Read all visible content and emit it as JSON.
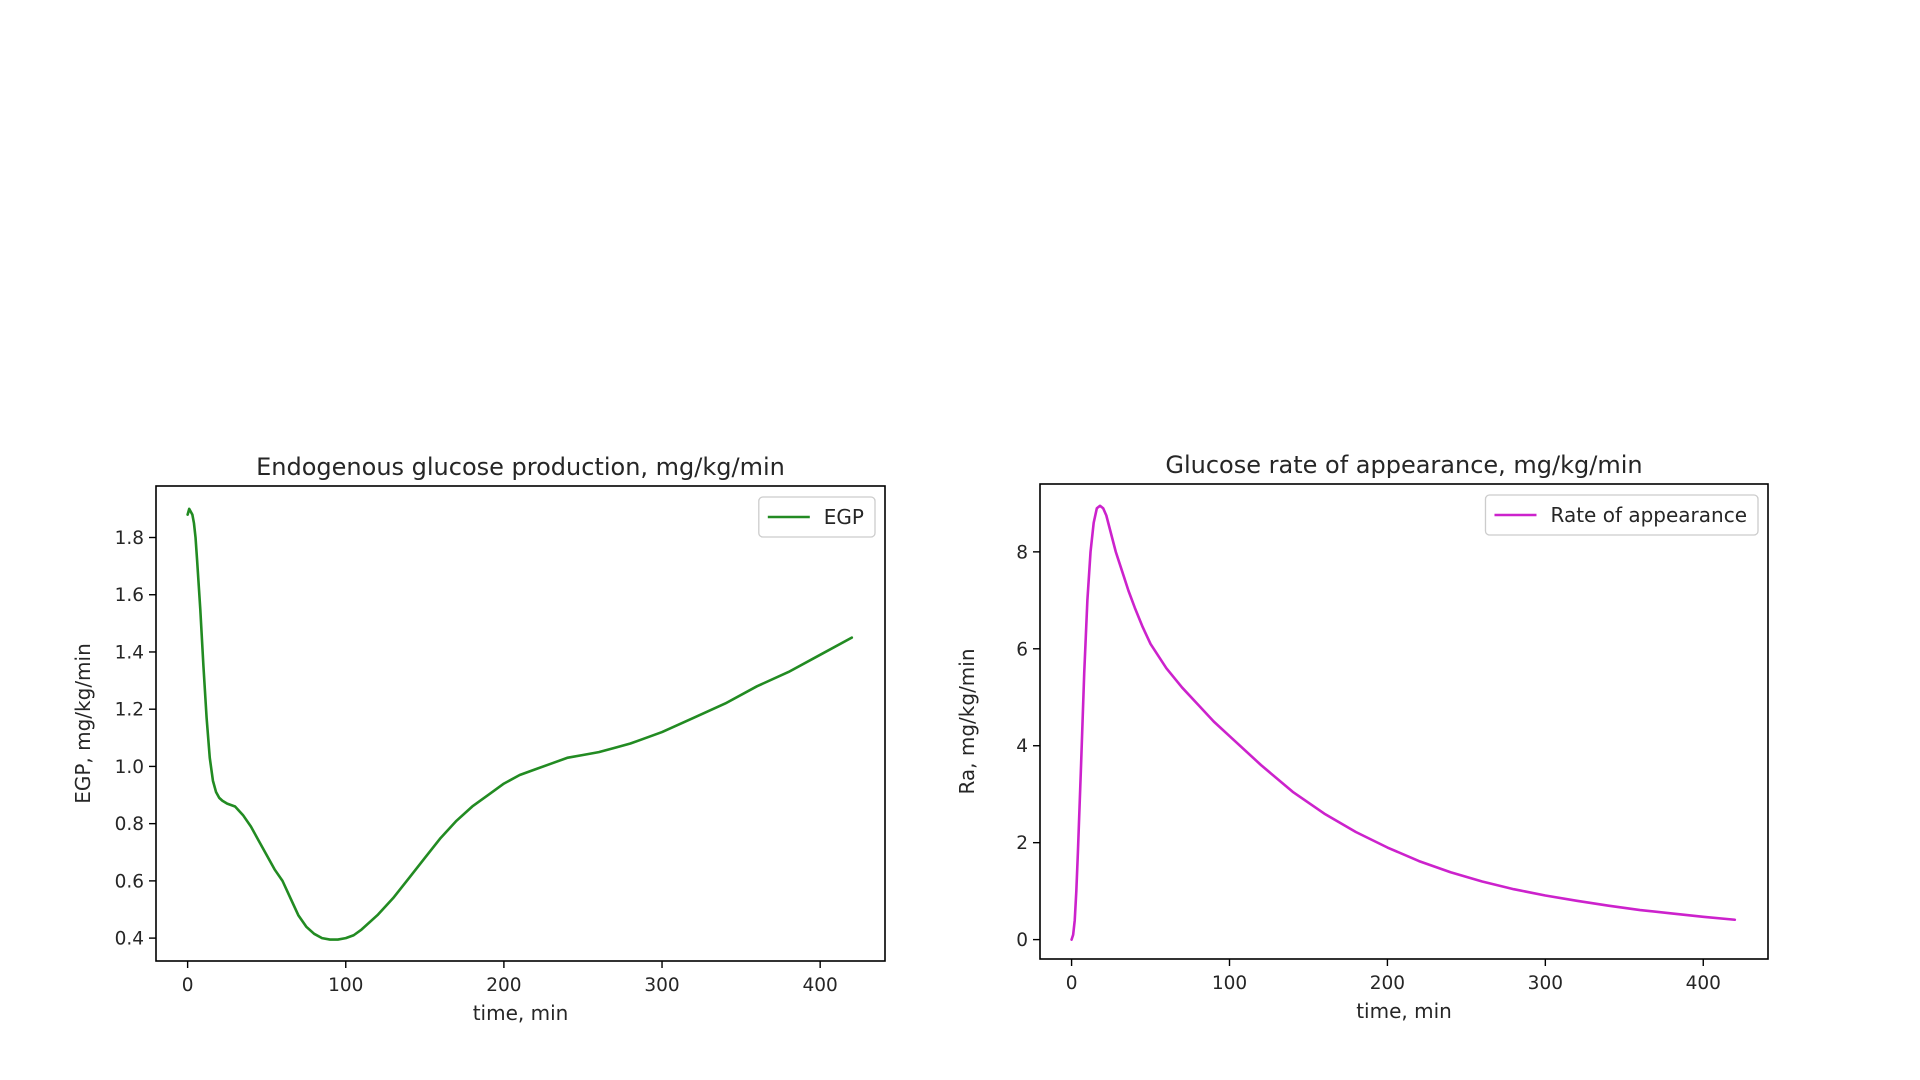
{
  "chart_data": [
    {
      "type": "line",
      "title": "Endogenous glucose production, mg/kg/min",
      "xlabel": "time, min",
      "ylabel": "EGP, mg/kg/min",
      "xlim": [
        -20,
        441
      ],
      "ylim": [
        0.32,
        1.98
      ],
      "xticks": [
        0,
        100,
        200,
        300,
        400
      ],
      "yticks": [
        0.4,
        0.6,
        0.8,
        1.0,
        1.2,
        1.4,
        1.6,
        1.8
      ],
      "ytick_labels": [
        "0.4",
        "0.6",
        "0.8",
        "1.0",
        "1.2",
        "1.4",
        "1.6",
        "1.8"
      ],
      "grid": false,
      "legend": "top-right",
      "series": [
        {
          "name": "EGP",
          "color": "#228b22",
          "x": [
            0,
            1,
            2,
            3,
            4,
            5,
            6,
            8,
            10,
            12,
            14,
            16,
            18,
            20,
            22,
            25,
            30,
            35,
            40,
            45,
            50,
            55,
            60,
            65,
            70,
            75,
            80,
            85,
            90,
            95,
            100,
            105,
            110,
            120,
            130,
            140,
            150,
            160,
            170,
            180,
            190,
            200,
            210,
            220,
            230,
            240,
            250,
            260,
            270,
            280,
            290,
            300,
            320,
            340,
            360,
            380,
            400,
            420
          ],
          "y": [
            1.88,
            1.9,
            1.89,
            1.88,
            1.85,
            1.8,
            1.72,
            1.55,
            1.35,
            1.17,
            1.03,
            0.95,
            0.91,
            0.89,
            0.88,
            0.87,
            0.86,
            0.83,
            0.79,
            0.74,
            0.69,
            0.64,
            0.6,
            0.54,
            0.48,
            0.44,
            0.415,
            0.4,
            0.395,
            0.395,
            0.4,
            0.41,
            0.43,
            0.48,
            0.54,
            0.61,
            0.68,
            0.75,
            0.81,
            0.86,
            0.9,
            0.94,
            0.97,
            0.99,
            1.01,
            1.03,
            1.04,
            1.05,
            1.065,
            1.08,
            1.1,
            1.12,
            1.17,
            1.22,
            1.28,
            1.33,
            1.39,
            1.45
          ]
        }
      ]
    },
    {
      "type": "line",
      "title": "Glucose rate of appearance, mg/kg/min",
      "xlabel": "time, min",
      "ylabel": "Ra, mg/kg/min",
      "xlim": [
        -20,
        441
      ],
      "ylim": [
        -0.4,
        9.4
      ],
      "xticks": [
        0,
        100,
        200,
        300,
        400
      ],
      "yticks": [
        0,
        2,
        4,
        6,
        8
      ],
      "ytick_labels": [
        "0",
        "2",
        "4",
        "6",
        "8"
      ],
      "grid": false,
      "legend": "top-right",
      "series": [
        {
          "name": "Rate of appearance",
          "color": "#cc22cc",
          "x": [
            0,
            1,
            2,
            3,
            4,
            6,
            8,
            10,
            12,
            14,
            16,
            18,
            20,
            22,
            24,
            26,
            28,
            30,
            33,
            36,
            40,
            45,
            50,
            55,
            60,
            70,
            80,
            90,
            100,
            120,
            140,
            160,
            180,
            200,
            220,
            240,
            260,
            280,
            300,
            320,
            340,
            360,
            380,
            400,
            420
          ],
          "y": [
            0.0,
            0.1,
            0.4,
            1.0,
            1.8,
            3.6,
            5.5,
            7.0,
            8.0,
            8.6,
            8.9,
            8.95,
            8.9,
            8.75,
            8.5,
            8.25,
            8.0,
            7.8,
            7.5,
            7.2,
            6.85,
            6.45,
            6.1,
            5.85,
            5.6,
            5.2,
            4.85,
            4.5,
            4.2,
            3.6,
            3.05,
            2.6,
            2.22,
            1.9,
            1.62,
            1.39,
            1.2,
            1.04,
            0.91,
            0.8,
            0.7,
            0.61,
            0.54,
            0.47,
            0.41
          ]
        }
      ]
    }
  ]
}
